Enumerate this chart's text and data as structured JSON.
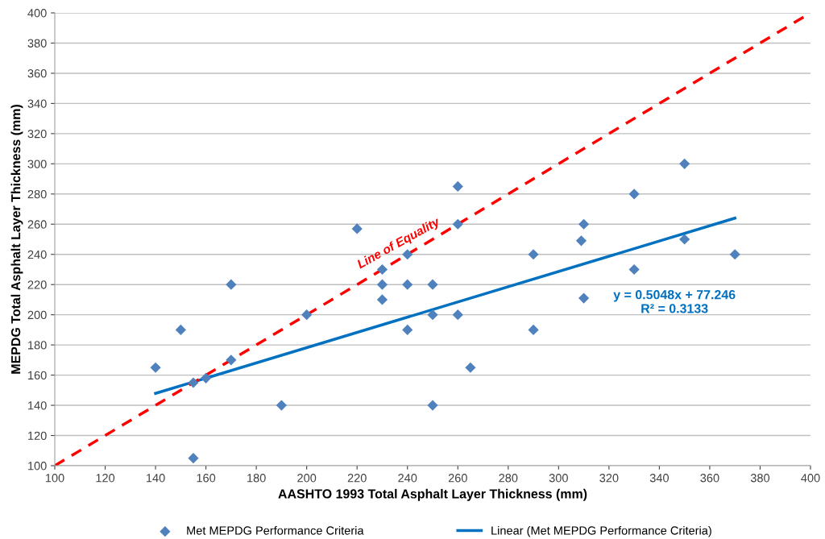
{
  "chart_data": {
    "type": "scatter",
    "xlabel": "AASHTO 1993 Total Asphalt Layer Thickness (mm)",
    "ylabel": "MEPDG Total Asphalt Layer Thickness (mm)",
    "xlim": [
      100,
      400
    ],
    "xticks": [
      100,
      120,
      140,
      160,
      180,
      200,
      220,
      240,
      260,
      280,
      300,
      320,
      340,
      360,
      380,
      400
    ],
    "ylim": [
      100,
      400
    ],
    "yticks": [
      100,
      120,
      140,
      160,
      180,
      200,
      220,
      240,
      260,
      280,
      300,
      320,
      340,
      360,
      380,
      400
    ],
    "grid": "y",
    "legend": "bottom",
    "series": [
      {
        "name": "Met MEPDG Performance Criteria",
        "color": "#4f81bd",
        "marker": "diamond",
        "x": [
          140,
          150,
          155,
          155,
          160,
          170,
          170,
          190,
          200,
          220,
          230,
          230,
          230,
          240,
          240,
          240,
          250,
          250,
          250,
          260,
          260,
          260,
          265,
          290,
          290,
          309,
          310,
          310,
          330,
          330,
          350,
          350,
          370
        ],
        "values": [
          165,
          190,
          155,
          105,
          158,
          220,
          170,
          140,
          200,
          257,
          230,
          220,
          210,
          240,
          220,
          190,
          220,
          200,
          140,
          285,
          260,
          200,
          165,
          240,
          190,
          249,
          260,
          211,
          280,
          230,
          300,
          250,
          240
        ]
      },
      {
        "name": "Linear (Met MEPDG Performance Criteria)",
        "type": "line",
        "color": "#0070c0",
        "marker": "none",
        "line_style": "solid",
        "x": [
          140,
          370
        ],
        "values": [
          147.9,
          264.0
        ]
      },
      {
        "type": "line",
        "color": "#ff0000",
        "marker": "none",
        "line_style": "dashed",
        "x": [
          100,
          400
        ],
        "values": [
          100,
          400
        ]
      }
    ],
    "annotations": [
      "Line of Equality",
      "y = 0.5048x + 77.246\nR² = 0.3133"
    ]
  }
}
